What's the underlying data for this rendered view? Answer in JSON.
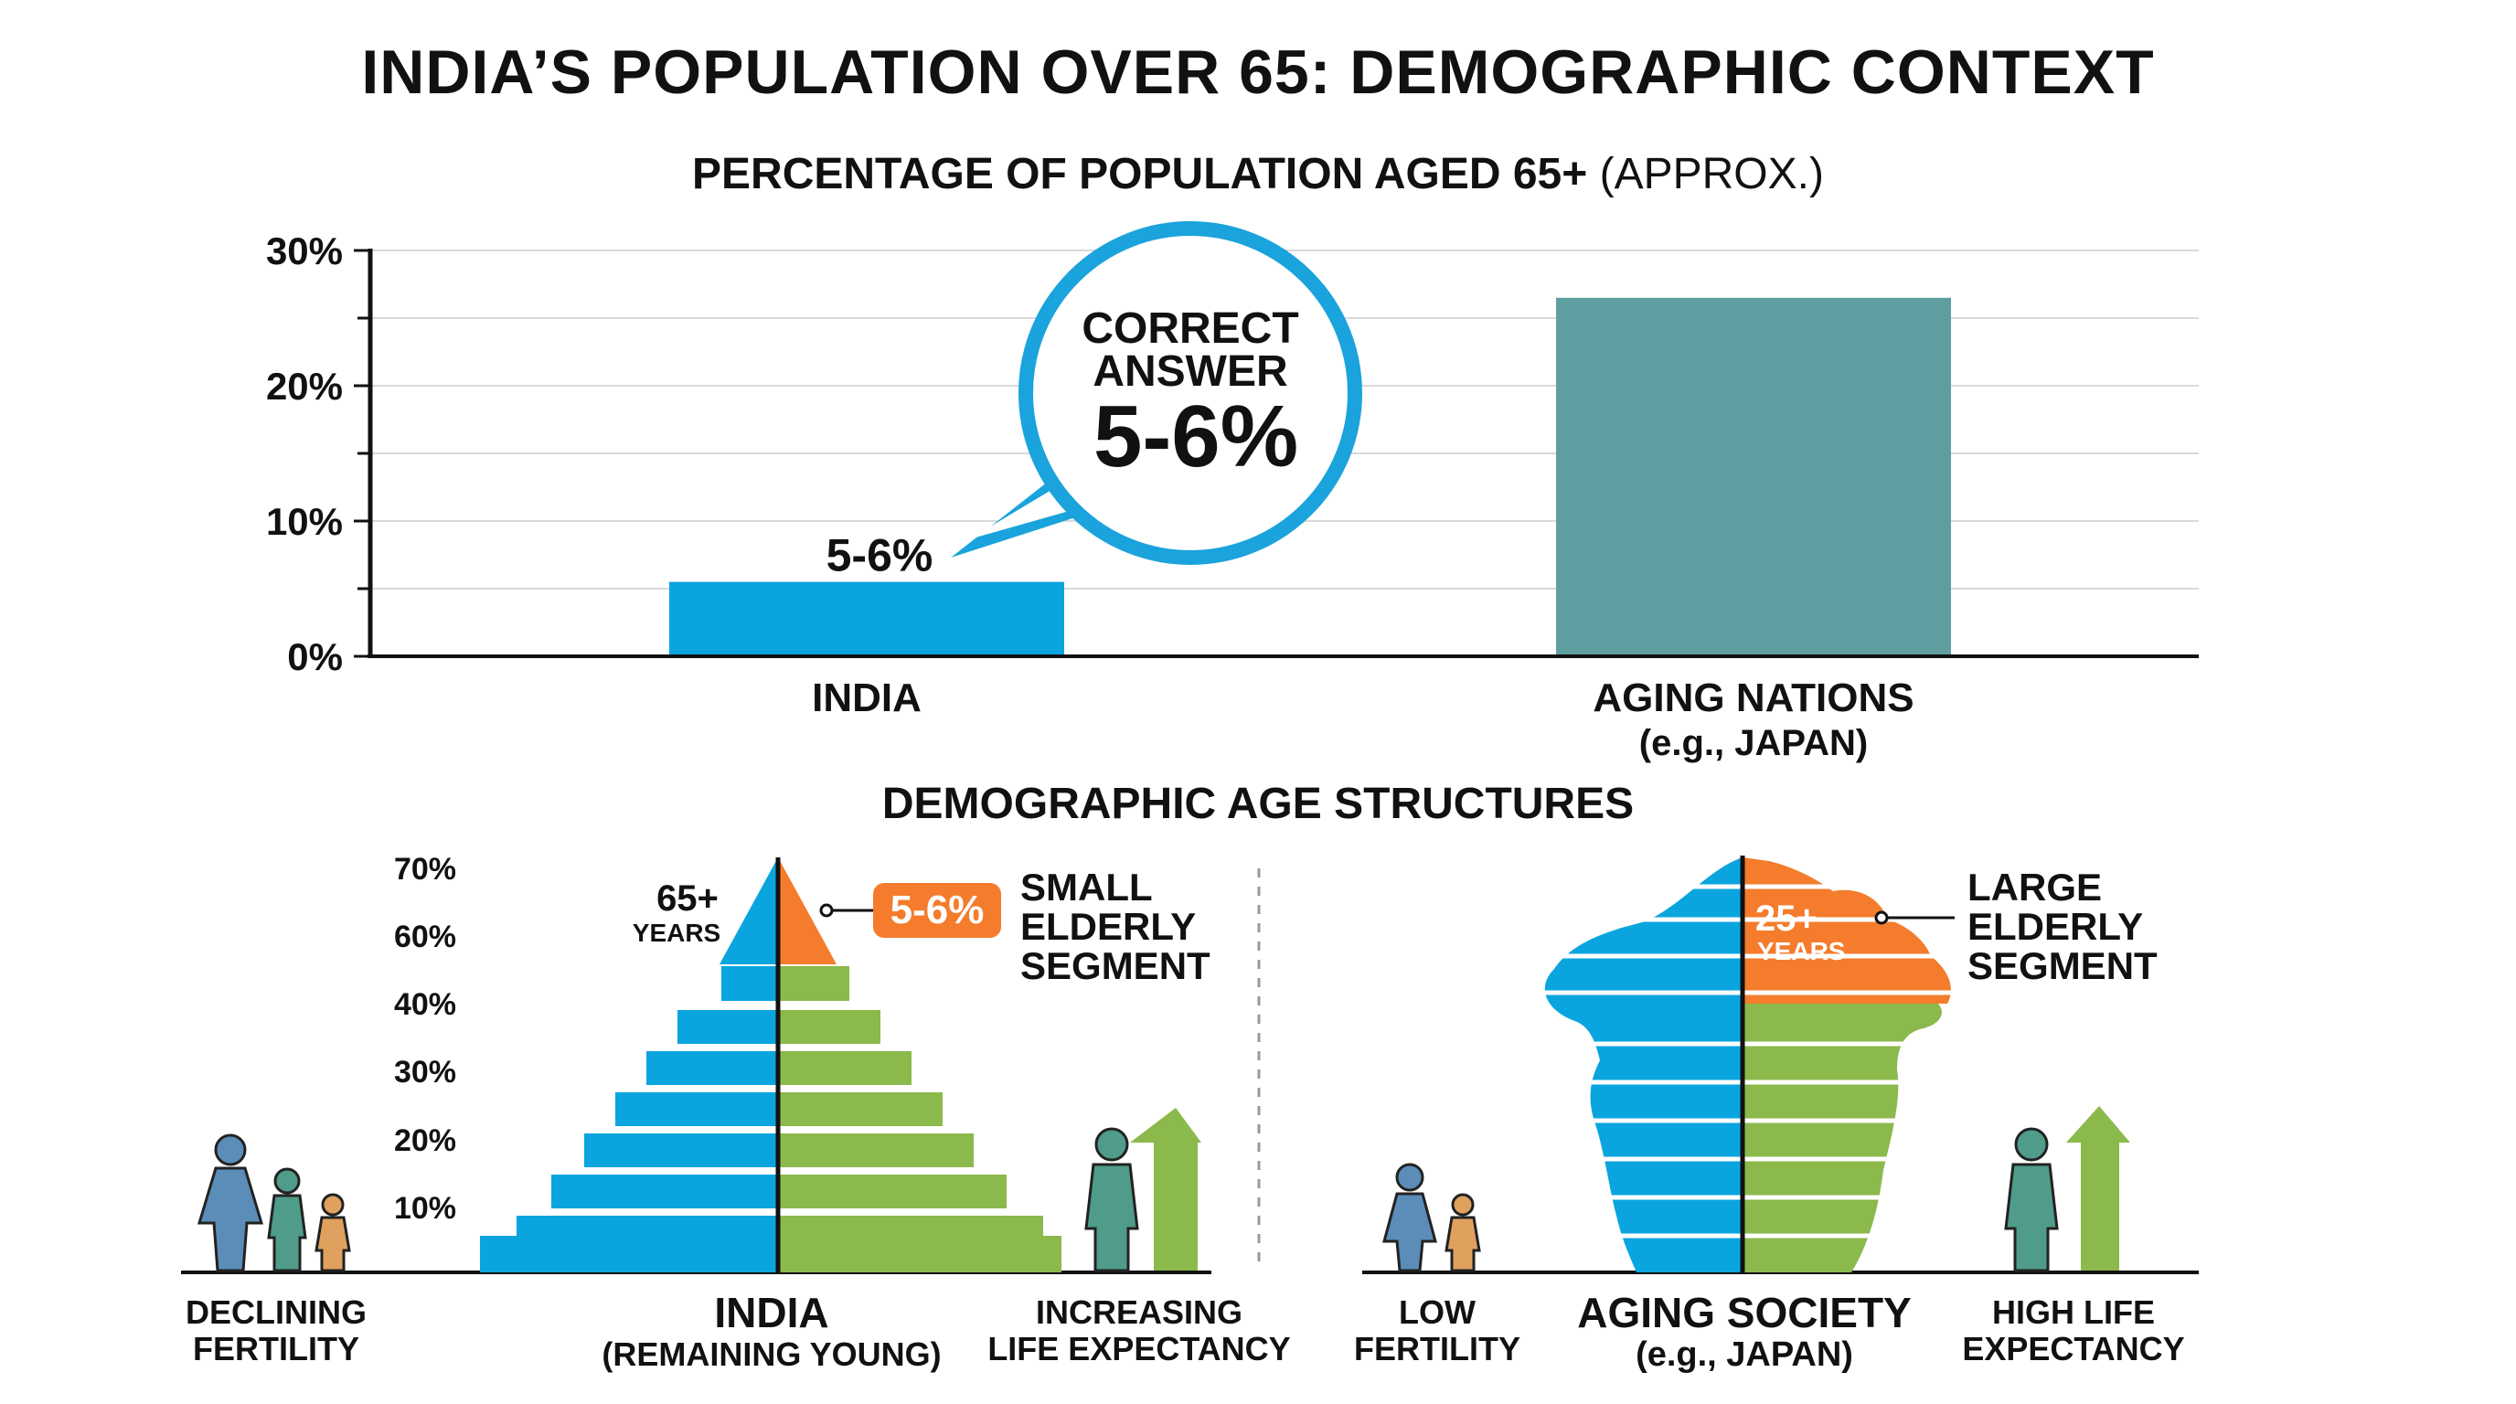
{
  "title": "INDIA’S POPULATION OVER 65: DEMOGRAPHIC CONTEXT",
  "bar_section": {
    "subtitle_bold": "PERCENTAGE OF POPULATION AGED 65+",
    "subtitle_light": "(APPROX.)",
    "callout": {
      "line1": "CORRECT",
      "line2": "ANSWER",
      "value": "5-6%"
    },
    "india_label": "INDIA",
    "aging_label": "AGING NATIONS",
    "aging_sub": "(e.g., JAPAN)"
  },
  "chart_data": {
    "type": "bar",
    "categories": [
      "INDIA",
      "AGING NATIONS (e.g., JAPAN)"
    ],
    "values": [
      5.5,
      26.5
    ],
    "data_labels": [
      "5-6%",
      ""
    ],
    "colors": [
      "#0aa5df",
      "#5f9ea0"
    ],
    "ylim": [
      0,
      30
    ],
    "yticks": [
      0,
      10,
      20,
      30
    ],
    "ytick_labels": [
      "0%",
      "10%",
      "20%",
      "30%"
    ],
    "grid": true
  },
  "structures": {
    "title": "DEMOGRAPHIC AGE STRUCTURES",
    "y_labels": [
      "70%",
      "60%",
      "40%",
      "30%",
      "20%",
      "10%"
    ],
    "india": {
      "top_label": "65+",
      "top_sub": "YEARS",
      "badge": "5-6%",
      "note": [
        "SMALL",
        "ELDERLY",
        "SEGMENT"
      ],
      "title": "INDIA",
      "subtitle": "(REMAINING YOUNG)",
      "left_caption": [
        "DECLINING",
        "FERTILITY"
      ],
      "right_caption": [
        "INCREASING",
        "LIFE EXPECTANCY"
      ]
    },
    "aging": {
      "top_label": "25+",
      "top_sub": "YEARS",
      "note": [
        "LARGE",
        "ELDERLY",
        "SEGMENT"
      ],
      "title": "AGING SOCIETY",
      "subtitle": "(e.g., JAPAN)",
      "left_caption": [
        "LOW",
        "FERTILITY"
      ],
      "right_caption": [
        "HIGH LIFE",
        "EXPECTANCY"
      ]
    },
    "colors": {
      "blue": "#0aa5df",
      "green": "#8bb94b",
      "orange": "#f47c2c",
      "teal": "#5a9b94",
      "figure": "#5b8db8",
      "child": "#e0a15f"
    }
  }
}
